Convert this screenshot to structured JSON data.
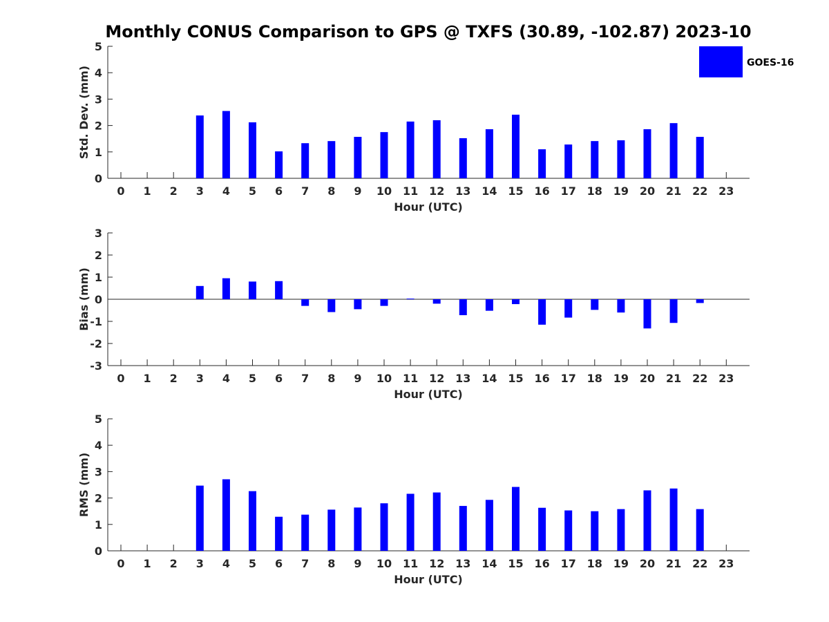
{
  "figure": {
    "title": "Monthly CONUS Comparison to GPS @ TXFS (30.89, -102.87) 2023-10"
  },
  "legend": {
    "label": "GOES-16",
    "placement": "top-right"
  },
  "colors": {
    "bar": "#0000ff",
    "axis": "#262626"
  },
  "chart_data": [
    {
      "type": "bar",
      "name": "std-dev",
      "xlabel": "Hour (UTC)",
      "ylabel": "Std. Dev. (mm)",
      "ylim": [
        0,
        5
      ],
      "yticks": [
        0,
        1,
        2,
        3,
        4,
        5
      ],
      "categories": [
        "0",
        "1",
        "2",
        "3",
        "4",
        "5",
        "6",
        "7",
        "8",
        "9",
        "10",
        "11",
        "12",
        "13",
        "14",
        "15",
        "16",
        "17",
        "18",
        "19",
        "20",
        "21",
        "22",
        "23"
      ],
      "series": [
        {
          "name": "GOES-16",
          "values": [
            null,
            null,
            null,
            2.38,
            2.55,
            2.12,
            1.02,
            1.33,
            1.41,
            1.57,
            1.75,
            2.15,
            2.2,
            1.52,
            1.86,
            2.41,
            1.1,
            1.28,
            1.41,
            1.44,
            1.86,
            2.09,
            1.57,
            null
          ]
        }
      ],
      "grid": false
    },
    {
      "type": "bar",
      "name": "bias",
      "xlabel": "Hour (UTC)",
      "ylabel": "Bias (mm)",
      "ylim": [
        -3,
        3
      ],
      "yticks": [
        -3,
        -2,
        -1,
        0,
        1,
        2,
        3
      ],
      "categories": [
        "0",
        "1",
        "2",
        "3",
        "4",
        "5",
        "6",
        "7",
        "8",
        "9",
        "10",
        "11",
        "12",
        "13",
        "14",
        "15",
        "16",
        "17",
        "18",
        "19",
        "20",
        "21",
        "22",
        "23"
      ],
      "series": [
        {
          "name": "GOES-16",
          "values": [
            null,
            null,
            null,
            0.6,
            0.95,
            0.8,
            0.82,
            -0.3,
            -0.58,
            -0.45,
            -0.3,
            0.03,
            -0.2,
            -0.72,
            -0.52,
            -0.22,
            -1.15,
            -0.83,
            -0.48,
            -0.6,
            -1.32,
            -1.07,
            -0.17,
            null
          ]
        }
      ],
      "grid": false
    },
    {
      "type": "bar",
      "name": "rms",
      "xlabel": "Hour (UTC)",
      "ylabel": "RMS (mm)",
      "ylim": [
        0,
        5
      ],
      "yticks": [
        0,
        1,
        2,
        3,
        4,
        5
      ],
      "categories": [
        "0",
        "1",
        "2",
        "3",
        "4",
        "5",
        "6",
        "7",
        "8",
        "9",
        "10",
        "11",
        "12",
        "13",
        "14",
        "15",
        "16",
        "17",
        "18",
        "19",
        "20",
        "21",
        "22",
        "23"
      ],
      "series": [
        {
          "name": "GOES-16",
          "values": [
            null,
            null,
            null,
            2.47,
            2.71,
            2.26,
            1.29,
            1.37,
            1.56,
            1.64,
            1.8,
            2.16,
            2.21,
            1.7,
            1.93,
            2.42,
            1.63,
            1.53,
            1.5,
            1.58,
            2.29,
            2.36,
            1.58,
            null
          ]
        }
      ],
      "grid": false
    }
  ]
}
